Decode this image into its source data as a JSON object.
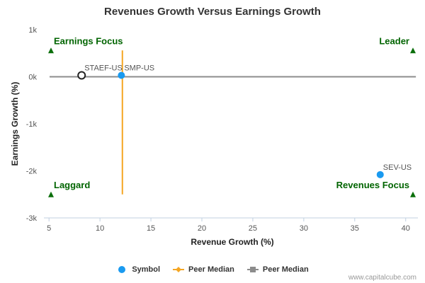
{
  "title": "Revenues Growth Versus Earnings Growth",
  "credit": "www.capitalcube.com",
  "legend": [
    {
      "label": "Symbol",
      "icon": "circle-marker-icon",
      "color": "#1a9af0"
    },
    {
      "label": "Peer Median",
      "icon": "diamond-line-icon",
      "color": "#f5a623"
    },
    {
      "label": "Peer Median",
      "icon": "square-line-icon",
      "color": "#8c8c8c"
    }
  ],
  "chart_data": {
    "type": "scatter",
    "title": "Revenues Growth Versus Earnings Growth",
    "xlabel": "Revenue Growth (%)",
    "ylabel": "Earnings Growth (%)",
    "xlim": [
      4.5,
      41.2
    ],
    "ylim": [
      -3000,
      1000
    ],
    "xticks": [
      5,
      10,
      15,
      20,
      25,
      30,
      35,
      40
    ],
    "yticks": [
      {
        "value": 1000,
        "label": "1k"
      },
      {
        "value": 0,
        "label": "0k"
      },
      {
        "value": -1000,
        "label": "-1k"
      },
      {
        "value": -2000,
        "label": "-2k"
      },
      {
        "value": -3000,
        "label": "-3k"
      }
    ],
    "points": [
      {
        "label": "STAEF-US",
        "x": 8.2,
        "y": 30,
        "style": "hollow"
      },
      {
        "label": "SMP-US",
        "x": 12.1,
        "y": 30,
        "style": "filled"
      },
      {
        "label": "SEV-US",
        "x": 37.5,
        "y": -2080,
        "style": "filled"
      }
    ],
    "peer_median_revenue": {
      "x": 12.2,
      "y_range": [
        -2500,
        560
      ]
    },
    "peer_median_earnings": {
      "y": 0,
      "x_range": [
        4.5,
        41.0
      ]
    },
    "quadrants": [
      {
        "label": "Earnings Focus",
        "x": 4.5,
        "y": 560,
        "align": "left"
      },
      {
        "label": "Leader",
        "x": 41.0,
        "y": 560,
        "align": "right"
      },
      {
        "label": "Laggard",
        "x": 4.5,
        "y": -2500,
        "align": "left"
      },
      {
        "label": "Revenues Focus",
        "x": 41.0,
        "y": -2500,
        "align": "right"
      }
    ],
    "colors": {
      "symbol": "#1a9af0",
      "peer_median_revenue": "#f5a623",
      "peer_median_earnings": "#8c8c8c",
      "quadrant_text": "#006400",
      "quadrant_marker": "#0a6e0a",
      "axis": "#c0d0e0"
    }
  }
}
